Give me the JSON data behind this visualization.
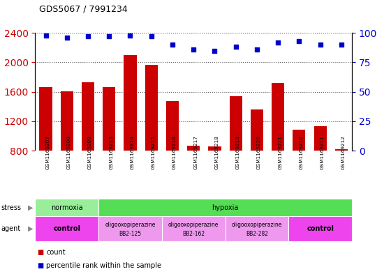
{
  "title": "GDS5067 / 7991234",
  "samples": [
    "GSM1169207",
    "GSM1169208",
    "GSM1169209",
    "GSM1169213",
    "GSM1169214",
    "GSM1169215",
    "GSM1169216",
    "GSM1169217",
    "GSM1169218",
    "GSM1169219",
    "GSM1169220",
    "GSM1169221",
    "GSM1169210",
    "GSM1169211",
    "GSM1169212"
  ],
  "counts": [
    1660,
    1610,
    1730,
    1660,
    2100,
    1970,
    1470,
    870,
    860,
    1540,
    1360,
    1720,
    1090,
    1130,
    820
  ],
  "percentiles": [
    98,
    96,
    97,
    97,
    98,
    97,
    90,
    86,
    85,
    88,
    86,
    92,
    93,
    90,
    90
  ],
  "bar_color": "#cc0000",
  "dot_color": "#0000cc",
  "ylim_left": [
    800,
    2400
  ],
  "ylim_right": [
    0,
    100
  ],
  "yticks_left": [
    800,
    1200,
    1600,
    2000,
    2400
  ],
  "yticks_right": [
    0,
    25,
    50,
    75,
    100
  ],
  "stress_groups": [
    {
      "label": "normoxia",
      "start": 0,
      "end": 3,
      "color": "#99ee99"
    },
    {
      "label": "hypoxia",
      "start": 3,
      "end": 15,
      "color": "#55dd55"
    }
  ],
  "agent_groups": [
    {
      "label": "control",
      "start": 0,
      "end": 3,
      "color": "#ee44ee",
      "text_lines": [
        "control"
      ],
      "bold": true
    },
    {
      "label": "oligooxopiperazine BB2-125",
      "start": 3,
      "end": 6,
      "color": "#ee99ee",
      "text_lines": [
        "oligooxopiperazine",
        "BB2-125"
      ],
      "bold": false
    },
    {
      "label": "oligooxopiperazine BB2-162",
      "start": 6,
      "end": 9,
      "color": "#ee99ee",
      "text_lines": [
        "oligooxopiperazine",
        "BB2-162"
      ],
      "bold": false
    },
    {
      "label": "oligooxopiperazine BB2-282",
      "start": 9,
      "end": 12,
      "color": "#ee99ee",
      "text_lines": [
        "oligooxopiperazine",
        "BB2-282"
      ],
      "bold": false
    },
    {
      "label": "control",
      "start": 12,
      "end": 15,
      "color": "#ee44ee",
      "text_lines": [
        "control"
      ],
      "bold": true
    }
  ],
  "background_color": "#ffffff",
  "tick_label_color_left": "#cc0000",
  "tick_label_color_right": "#0000cc",
  "grid_color": "#555555",
  "xticklabel_bg": "#cccccc",
  "bar_width": 0.6
}
